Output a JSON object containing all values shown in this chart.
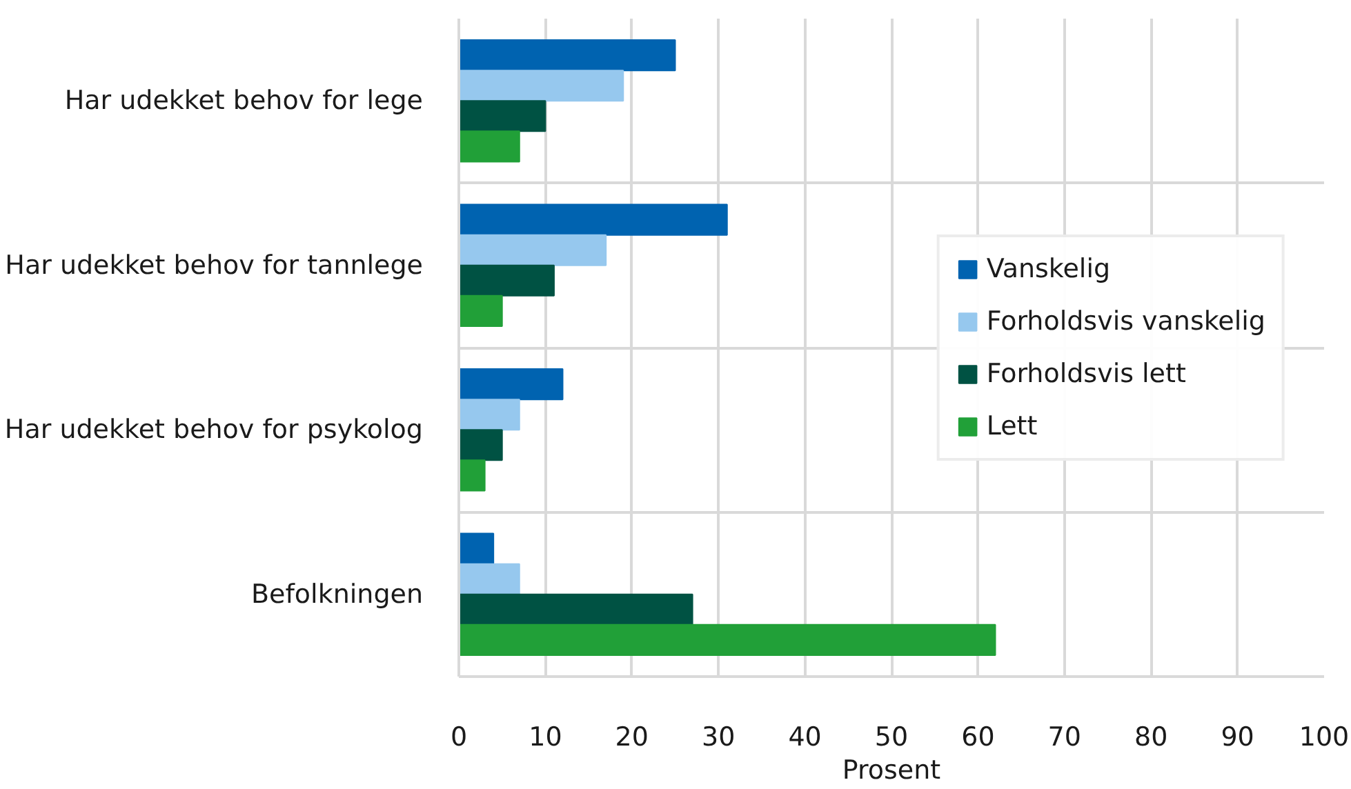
{
  "chart_data": {
    "type": "bar",
    "orientation": "horizontal",
    "categories": [
      "Har udekket behov for lege",
      "Har udekket behov for tannlege",
      "Har udekket behov for psykolog",
      "Befolkningen"
    ],
    "series": [
      {
        "name": "Vanskelig",
        "color": "#0063b0",
        "values": [
          25,
          31,
          12,
          4
        ]
      },
      {
        "name": "Forholdsvis vanskelig",
        "color": "#96c8ee",
        "values": [
          19,
          17,
          7,
          7
        ]
      },
      {
        "name": "Forholdsvis lett",
        "color": "#005243",
        "values": [
          10,
          11,
          5,
          27
        ]
      },
      {
        "name": "Lett",
        "color": "#21a038",
        "values": [
          7,
          5,
          3,
          62
        ]
      }
    ],
    "xlim": [
      0,
      100
    ],
    "xticks": [
      0,
      10,
      20,
      30,
      40,
      50,
      60,
      70,
      80,
      90,
      100
    ],
    "xlabel": "Prosent",
    "grid": true,
    "legend": "right"
  }
}
